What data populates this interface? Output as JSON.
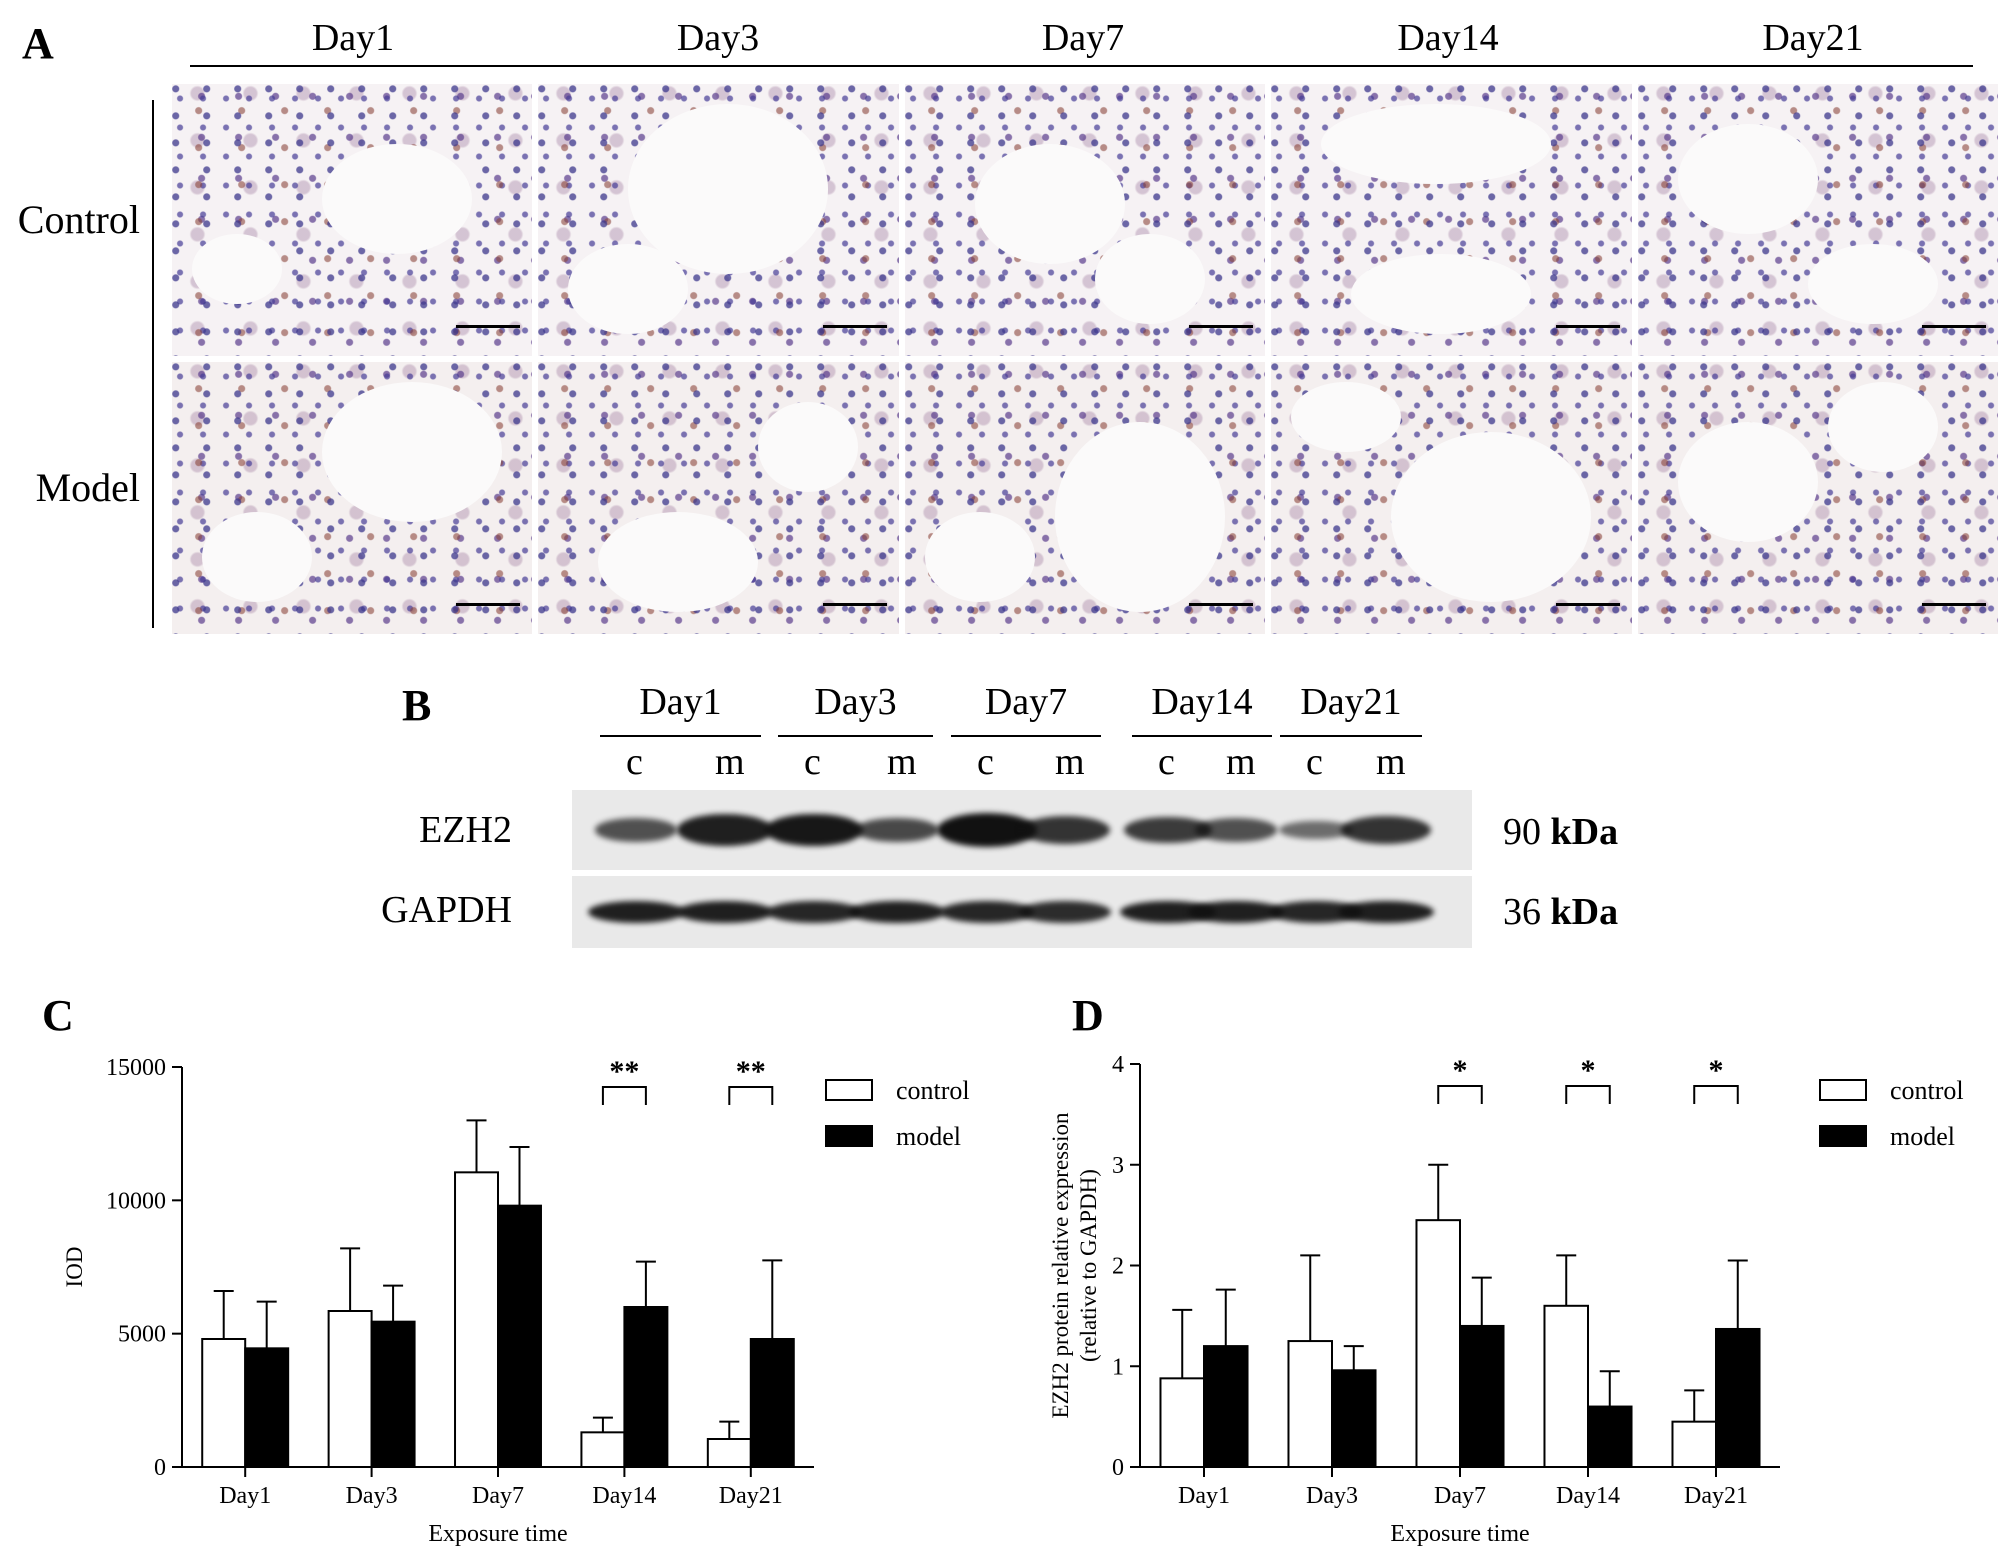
{
  "panel_a": {
    "letter": "A",
    "days": [
      "Day1",
      "Day3",
      "Day7",
      "Day14",
      "Day21"
    ],
    "rows": [
      "Control",
      "Model"
    ]
  },
  "panel_b": {
    "letter": "B",
    "days": [
      "Day1",
      "Day3",
      "Day7",
      "Day14",
      "Day21"
    ],
    "lanes": [
      "c",
      "m",
      "c",
      "m",
      "c",
      "m",
      "c",
      "m",
      "c",
      "m"
    ],
    "rows": [
      {
        "label": "EZH2",
        "size": "90",
        "unit": "kDa",
        "intensity": [
          0.55,
          0.9,
          0.95,
          0.6,
          1.0,
          0.75,
          0.7,
          0.55,
          0.35,
          0.75
        ]
      },
      {
        "label": "GAPDH",
        "size": "36",
        "unit": "kDa",
        "intensity": [
          0.9,
          0.9,
          0.85,
          0.9,
          0.85,
          0.8,
          0.9,
          0.9,
          0.85,
          0.9
        ]
      }
    ]
  },
  "legend": {
    "control": "control",
    "model": "model"
  },
  "chart_data": [
    {
      "panel": "C",
      "type": "bar",
      "categories": [
        "Day1",
        "Day3",
        "Day7",
        "Day14",
        "Day21"
      ],
      "series": [
        {
          "name": "control",
          "values": [
            4800,
            5850,
            11050,
            1300,
            1050
          ],
          "errors": [
            1800,
            2350,
            1950,
            550,
            650
          ],
          "color": "#ffffff"
        },
        {
          "name": "model",
          "values": [
            4450,
            5450,
            9800,
            6000,
            4800
          ],
          "errors": [
            1750,
            1350,
            2200,
            1700,
            2950
          ],
          "color": "#000000"
        }
      ],
      "significance": [
        {
          "category": "Day14",
          "label": "**"
        },
        {
          "category": "Day21",
          "label": "**"
        }
      ],
      "xlabel": "Exposure time",
      "ylabel": "IOD",
      "ylim": [
        0,
        15000
      ],
      "yticks": [
        0,
        5000,
        10000,
        15000
      ],
      "legend_position": "top-right"
    },
    {
      "panel": "D",
      "type": "bar",
      "categories": [
        "Day1",
        "Day3",
        "Day7",
        "Day14",
        "Day21"
      ],
      "series": [
        {
          "name": "control",
          "values": [
            0.88,
            1.25,
            2.45,
            1.6,
            0.45
          ],
          "errors": [
            0.68,
            0.85,
            0.55,
            0.5,
            0.31
          ],
          "color": "#ffffff"
        },
        {
          "name": "model",
          "values": [
            1.2,
            0.96,
            1.4,
            0.6,
            1.37
          ],
          "errors": [
            0.56,
            0.24,
            0.48,
            0.35,
            0.68
          ],
          "color": "#000000"
        }
      ],
      "significance": [
        {
          "category": "Day7",
          "label": "*"
        },
        {
          "category": "Day14",
          "label": "*"
        },
        {
          "category": "Day21",
          "label": "*"
        }
      ],
      "xlabel": "Exposure time",
      "ylabel": "EZH2 protein relative expression",
      "ylabel2": "(relative to GAPDH)",
      "ylim": [
        0,
        4
      ],
      "yticks": [
        0,
        1,
        2,
        3,
        4
      ],
      "legend_position": "top-right"
    }
  ]
}
